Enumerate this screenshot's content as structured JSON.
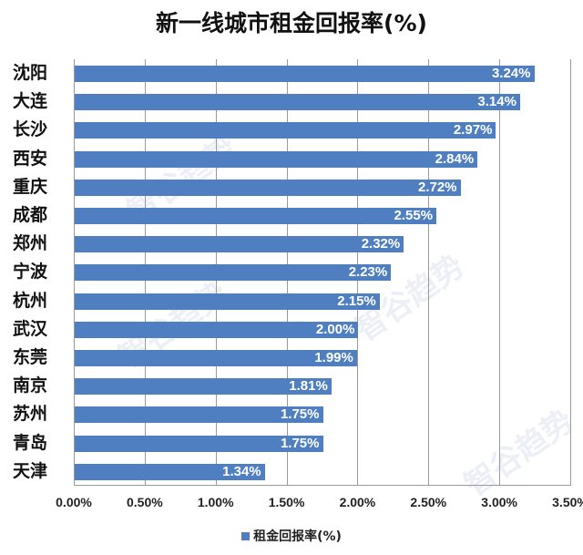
{
  "chart_data": {
    "type": "bar",
    "orientation": "horizontal",
    "title": "新一线城市租金回报率(%)",
    "xlabel": "",
    "ylabel": "",
    "categories": [
      "沈阳",
      "大连",
      "长沙",
      "西安",
      "重庆",
      "成都",
      "郑州",
      "宁波",
      "杭州",
      "武汉",
      "东莞",
      "南京",
      "苏州",
      "青岛",
      "天津"
    ],
    "series": [
      {
        "name": "租金回报率(%)",
        "values": [
          3.24,
          3.14,
          2.97,
          2.84,
          2.72,
          2.55,
          2.32,
          2.23,
          2.15,
          2.0,
          1.99,
          1.81,
          1.75,
          1.75,
          1.34
        ],
        "labels": [
          "3.24%",
          "3.14%",
          "2.97%",
          "2.84%",
          "2.72%",
          "2.55%",
          "2.32%",
          "2.23%",
          "2.15%",
          "2.00%",
          "1.99%",
          "1.81%",
          "1.75%",
          "1.75%",
          "1.34%"
        ],
        "color": "#4f7fc0"
      }
    ],
    "xlim": [
      0,
      3.5
    ],
    "x_ticks": [
      "0.00%",
      "0.50%",
      "1.00%",
      "1.50%",
      "2.00%",
      "2.50%",
      "3.00%",
      "3.50%"
    ],
    "grid": "vertical",
    "legend_position": "bottom",
    "watermark": "智谷趋势"
  },
  "title": "新一线城市租金回报率(%)",
  "legend": {
    "label": "租金回报率(%)",
    "color": "#4f7fc0"
  }
}
